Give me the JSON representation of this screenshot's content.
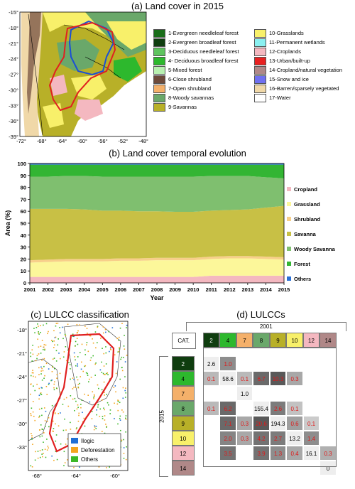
{
  "panel_a": {
    "title": "(a) Land cover in 2015",
    "lat_ticks": [
      "-15°",
      "-18°",
      "-21°",
      "-24°",
      "-27°",
      "-30°",
      "-33°",
      "-36°",
      "-39°"
    ],
    "lon_ticks": [
      "-72°",
      "-68°",
      "-64°",
      "-60°",
      "-56°",
      "-52°",
      "-48°"
    ],
    "legend_left": [
      {
        "label": "1-Evergreen needleleaf forest",
        "color": "#1a6e1a"
      },
      {
        "label": "2-Evergreen broadleaf forest",
        "color": "#0f3d0f"
      },
      {
        "label": "3-Deciduous needleleaf forest",
        "color": "#5fc45f"
      },
      {
        "label": "4- Deciduous broadleaf forest",
        "color": "#2db82d"
      },
      {
        "label": "5-Mixed forest",
        "color": "#b8f0b0"
      },
      {
        "label": "6-Close shrubland",
        "color": "#6e4a3a"
      },
      {
        "label": "7-Open shrubland",
        "color": "#f4b06a"
      },
      {
        "label": "8-Woody savannas",
        "color": "#6aa86a"
      },
      {
        "label": "9-Savannas",
        "color": "#b8b028"
      }
    ],
    "legend_right": [
      {
        "label": "10-Grasslands",
        "color": "#f8f06a"
      },
      {
        "label": "11-Permanent wetlands",
        "color": "#8af0f0"
      },
      {
        "label": "12-Croplands",
        "color": "#f4b8c0"
      },
      {
        "label": "13-Urban/built-up",
        "color": "#e82020"
      },
      {
        "label": "14-Cropland/natural vegetation",
        "color": "#b08888"
      },
      {
        "label": "15-Snow and ice",
        "color": "#7070f0"
      },
      {
        "label": "16-Barren/sparsely vegetated",
        "color": "#f0d8a8"
      },
      {
        "label": "17-Water",
        "color": "#ffffff"
      }
    ]
  },
  "panel_b": {
    "title": "(b) Land cover temporal evolution"
  },
  "panel_c": {
    "title": "(c) LULCC classification",
    "lat_ticks": [
      "-18°",
      "-21°",
      "-24°",
      "-27°",
      "-30°",
      "-33°"
    ],
    "lon_ticks": [
      "-68°",
      "-64°",
      "-60°"
    ],
    "legend": [
      {
        "label": "Ilogic",
        "color": "#1f6fd6"
      },
      {
        "label": "Deforestation",
        "color": "#f4a520"
      },
      {
        "label": "Others",
        "color": "#3cb828"
      }
    ]
  },
  "panel_d": {
    "title": "(d) LULCCs",
    "top_label": "2001",
    "side_label": "2015",
    "corner": "CAT.",
    "cols": [
      {
        "label": "2",
        "color": "#0f3d0f",
        "light": true
      },
      {
        "label": "4",
        "color": "#2db82d",
        "light": false
      },
      {
        "label": "7",
        "color": "#f4b06a",
        "light": false
      },
      {
        "label": "8",
        "color": "#6aa86a",
        "light": false
      },
      {
        "label": "9",
        "color": "#b8b028",
        "light": false
      },
      {
        "label": "10",
        "color": "#f8f06a",
        "light": false
      },
      {
        "label": "12",
        "color": "#f4b8c0",
        "light": false
      },
      {
        "label": "14",
        "color": "#b08888",
        "light": false
      }
    ],
    "rows": [
      {
        "label": "2",
        "color": "#0f3d0f",
        "light": true,
        "cells": [
          {
            "v": "2.6",
            "s": 0.1
          },
          {
            "v": "1.0",
            "s": 0.65
          },
          null,
          null,
          null,
          null,
          null,
          null
        ]
      },
      {
        "label": "4",
        "color": "#2db82d",
        "light": false,
        "cells": [
          {
            "v": "0.1",
            "s": 0.4
          },
          {
            "v": "58.6",
            "s": 0.1
          },
          {
            "v": "0.1",
            "s": 0.4
          },
          {
            "v": "6.7",
            "s": 0.85
          },
          {
            "v": "10.3",
            "s": 0.95
          },
          {
            "v": "0.3",
            "s": 0.5
          },
          null,
          null
        ]
      },
      {
        "label": "7",
        "color": "#f4b06a",
        "light": false,
        "cells": [
          null,
          null,
          {
            "v": "1.0",
            "s": 0.1
          },
          null,
          null,
          null,
          null,
          null
        ]
      },
      {
        "label": "8",
        "color": "#6aa86a",
        "light": false,
        "cells": [
          {
            "v": "0.1",
            "s": 0.4
          },
          {
            "v": "6.2",
            "s": 0.85
          },
          null,
          {
            "v": "155.4",
            "s": 0.1
          },
          {
            "v": "2.6",
            "s": 0.75
          },
          {
            "v": "0.1",
            "s": 0.35
          },
          null,
          null
        ]
      },
      {
        "label": "9",
        "color": "#b8b028",
        "light": false,
        "cells": [
          null,
          {
            "v": "7.1",
            "s": 0.85
          },
          {
            "v": "0.3",
            "s": 0.5
          },
          {
            "v": "20.6",
            "s": 0.95
          },
          {
            "v": "194.3",
            "s": 0.1
          },
          {
            "v": "0.6",
            "s": 0.55
          },
          {
            "v": "0.1",
            "s": 0.3
          },
          null
        ]
      },
      {
        "label": "10",
        "color": "#f8f06a",
        "light": false,
        "cells": [
          null,
          {
            "v": "2.0",
            "s": 0.7
          },
          {
            "v": "0.3",
            "s": 0.5
          },
          {
            "v": "4.2",
            "s": 0.8
          },
          {
            "v": "2.7",
            "s": 0.75
          },
          {
            "v": "13.2",
            "s": 0.1
          },
          {
            "v": "1.4",
            "s": 0.65
          },
          null
        ]
      },
      {
        "label": "12",
        "color": "#f4b8c0",
        "light": false,
        "cells": [
          null,
          {
            "v": "3.5",
            "s": 0.8
          },
          null,
          {
            "v": "3.9",
            "s": 0.8
          },
          {
            "v": "1.3",
            "s": 0.65
          },
          {
            "v": "0.4",
            "s": 0.5
          },
          {
            "v": "16.1",
            "s": 0.1
          },
          {
            "v": "0.3",
            "s": 0.45
          }
        ]
      },
      {
        "label": "14",
        "color": "#b08888",
        "light": false,
        "cells": [
          null,
          null,
          null,
          null,
          null,
          null,
          null,
          {
            "v": "0",
            "s": 0.1
          }
        ]
      }
    ]
  },
  "chart_data": {
    "type": "area",
    "title": "(b) Land cover temporal evolution",
    "xlabel": "Year",
    "ylabel": "Area (%)",
    "x": [
      2001,
      2002,
      2003,
      2004,
      2005,
      2006,
      2007,
      2008,
      2009,
      2010,
      2011,
      2012,
      2013,
      2014,
      2015
    ],
    "ylim": [
      0,
      100
    ],
    "yticks": [
      0,
      10,
      20,
      30,
      40,
      50,
      60,
      70,
      80,
      90,
      100
    ],
    "stacked": true,
    "series": [
      {
        "name": "Cropland",
        "color": "#f4b8c0",
        "values": [
          5,
          5,
          5,
          5,
          5,
          5,
          5,
          5,
          5,
          5,
          6,
          6,
          6,
          6,
          6
        ]
      },
      {
        "name": "Grassland",
        "color": "#fcf79a",
        "values": [
          12,
          12.5,
          13,
          13,
          13,
          13.5,
          13.5,
          14,
          14,
          14,
          14,
          14.5,
          14.5,
          14,
          13.5
        ]
      },
      {
        "name": "Shrubland",
        "color": "#f7cf8a",
        "values": [
          2,
          2,
          2,
          2,
          2,
          2,
          2,
          2,
          2,
          2,
          2,
          2,
          2,
          2,
          2
        ]
      },
      {
        "name": "Savanna",
        "color": "#c8c045",
        "values": [
          43,
          42.5,
          42,
          41.5,
          40.5,
          40,
          39.5,
          39,
          38.5,
          38.5,
          38.5,
          38.5,
          39,
          41,
          43
        ]
      },
      {
        "name": "Woody Savanna",
        "color": "#7fbf6f",
        "values": [
          27,
          27,
          27.5,
          28,
          28.5,
          28.5,
          29,
          29,
          29.5,
          29.5,
          29,
          28.5,
          28,
          25.5,
          23
        ]
      },
      {
        "name": "Forest",
        "color": "#33b533",
        "values": [
          10,
          10,
          9.5,
          9.5,
          10,
          10,
          10,
          10,
          10,
          10,
          9.5,
          9.5,
          9.5,
          10.5,
          11.5
        ]
      },
      {
        "name": "Others",
        "color": "#2a6fd6",
        "values": [
          1,
          1,
          1,
          1,
          1,
          1,
          1,
          1,
          1,
          1,
          1,
          1,
          1,
          1,
          1
        ]
      }
    ],
    "legend_position": "right"
  }
}
